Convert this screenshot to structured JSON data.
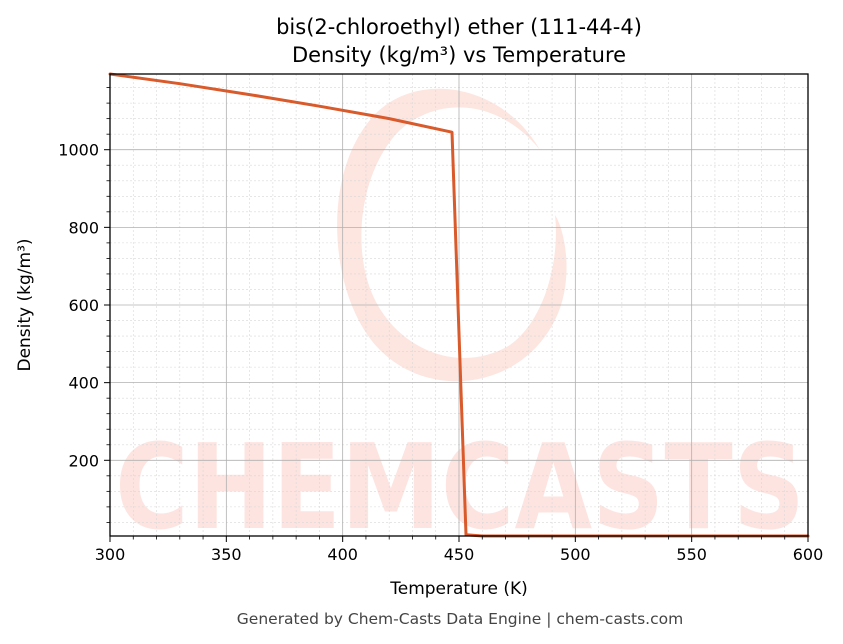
{
  "chart_data": {
    "type": "line",
    "title": "bis(2-chloroethyl) ether (111-44-4)",
    "subtitle": "Density (kg/m³) vs Temperature",
    "xlabel": "Temperature (K)",
    "ylabel": "Density (kg/m³)",
    "xlim": [
      300,
      600
    ],
    "ylim": [
      5,
      1195
    ],
    "xticks": [
      300,
      350,
      400,
      450,
      500,
      550,
      600
    ],
    "yticks": [
      200,
      400,
      600,
      800,
      1000
    ],
    "grid": true,
    "series": [
      {
        "color": "#d95a2b",
        "x": [
          300,
          330,
          360,
          390,
          420,
          447,
          453,
          460,
          500,
          550,
          600
        ],
        "y": [
          1195,
          1170,
          1142,
          1112,
          1080,
          1045,
          8,
          5,
          5,
          5,
          5
        ]
      }
    ]
  },
  "watermark": {
    "text": "CHEMCASTS",
    "color": "#fde0db"
  },
  "footer": "Generated by Chem-Casts Data Engine | chem-casts.com"
}
